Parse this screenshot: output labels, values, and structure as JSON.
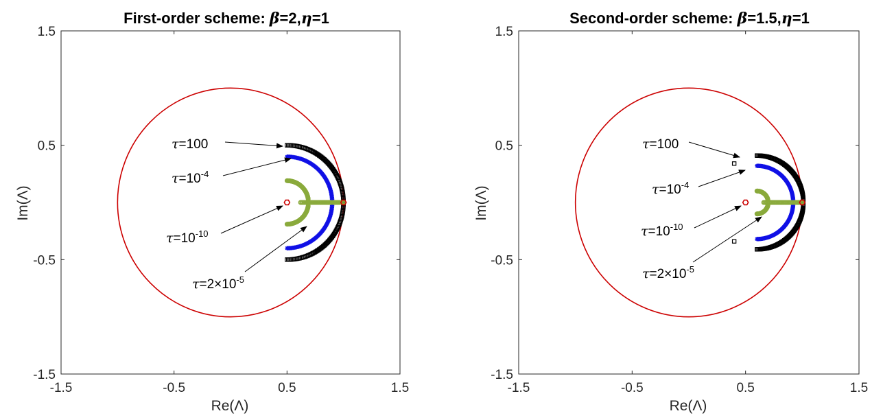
{
  "chart_data": [
    {
      "type": "scatter",
      "title_text": "First-order scheme: ",
      "title_beta": "β",
      "title_beta_val": "=2,",
      "title_eta": "η",
      "title_eta_val": "=1",
      "xlabel": "Re(Λ)",
      "ylabel": "Im(Λ)",
      "xlim": [
        -1.5,
        1.5
      ],
      "ylim": [
        -1.5,
        1.5
      ],
      "xticks": [
        "-1.5",
        "-0.5",
        "0.5",
        "1.5"
      ],
      "yticks": [
        "1.5",
        "0.5",
        "-0.5",
        "-1.5"
      ],
      "xtick_values": [
        -1.5,
        -0.5,
        0.5,
        1.5
      ],
      "ytick_values": [
        1.5,
        0.5,
        -0.5,
        -1.5
      ],
      "unit_circle": {
        "center": [
          0,
          0
        ],
        "radius": 1,
        "color": "#cc0000"
      },
      "series": [
        {
          "marker": "square",
          "color": "#000000",
          "arc": {
            "radius": 0.5,
            "center": [
              0.5,
              0
            ],
            "t_range": [
              0,
              1.0
            ]
          }
        },
        {
          "marker": "star",
          "color": "#1010e6",
          "arc": {
            "radius": 0.4,
            "center": [
              0.5,
              0
            ],
            "t_range": [
              0,
              0.97
            ]
          }
        },
        {
          "marker": "circle",
          "color": "#8aaa3c",
          "arc": {
            "radius": 0.19,
            "center": [
              0.5,
              0
            ],
            "t_range": [
              0,
              0.9
            ]
          },
          "segment": {
            "x": [
              0.62,
              1.0
            ],
            "y": 0
          }
        },
        {
          "marker": "hex",
          "color": "#cc0000",
          "points": [
            [
              0.5,
              0
            ],
            [
              1.0,
              0
            ]
          ]
        }
      ],
      "annotations": [
        {
          "label": "τ",
          "eq": "=100",
          "sup": ""
        },
        {
          "label": "τ",
          "eq": "=10",
          "sup": "-4"
        },
        {
          "label": "τ",
          "eq": "=10",
          "sup": "-10"
        },
        {
          "label": "τ",
          "eq": "=2×10",
          "sup": "-5"
        }
      ]
    },
    {
      "type": "scatter",
      "title_text": "Second-order scheme: ",
      "title_beta": "β",
      "title_beta_val": "=1.5,",
      "title_eta": "η",
      "title_eta_val": "=1",
      "xlabel": "Re(Λ)",
      "ylabel": "Im(Λ)",
      "xlim": [
        -1.5,
        1.5
      ],
      "ylim": [
        -1.5,
        1.5
      ],
      "xticks": [
        "-1.5",
        "-0.5",
        "0.5",
        "1.5"
      ],
      "yticks": [
        "1.5",
        "0.5",
        "-0.5",
        "-1.5"
      ],
      "xtick_values": [
        -1.5,
        -0.5,
        0.5,
        1.5
      ],
      "ytick_values": [
        1.5,
        0.5,
        -0.5,
        -1.5
      ],
      "unit_circle": {
        "center": [
          0,
          0
        ],
        "radius": 1,
        "color": "#cc0000"
      },
      "series": [
        {
          "marker": "square",
          "color": "#000000",
          "arc": {
            "radius": 0.41,
            "center": [
              0.6,
              0
            ],
            "t_range": [
              0,
              0.97
            ]
          },
          "extra": [
            [
              0.4,
              0.34
            ],
            [
              0.4,
              -0.34
            ]
          ]
        },
        {
          "marker": "star",
          "color": "#1010e6",
          "arc": {
            "radius": 0.32,
            "center": [
              0.6,
              0
            ],
            "t_range": [
              0,
              0.95
            ]
          }
        },
        {
          "marker": "circle",
          "color": "#8aaa3c",
          "arc": {
            "radius": 0.1,
            "center": [
              0.6,
              0
            ],
            "t_range": [
              0,
              0.85
            ]
          },
          "segment": {
            "x": [
              0.66,
              1.0
            ],
            "y": 0
          }
        },
        {
          "marker": "hex",
          "color": "#cc0000",
          "points": [
            [
              0.5,
              0
            ],
            [
              1.0,
              0
            ]
          ]
        }
      ],
      "annotations": [
        {
          "label": "τ",
          "eq": "=100",
          "sup": ""
        },
        {
          "label": "τ",
          "eq": "=10",
          "sup": "-4"
        },
        {
          "label": "τ",
          "eq": "=10",
          "sup": "-10"
        },
        {
          "label": "τ",
          "eq": "=2×10",
          "sup": "-5"
        }
      ]
    }
  ]
}
